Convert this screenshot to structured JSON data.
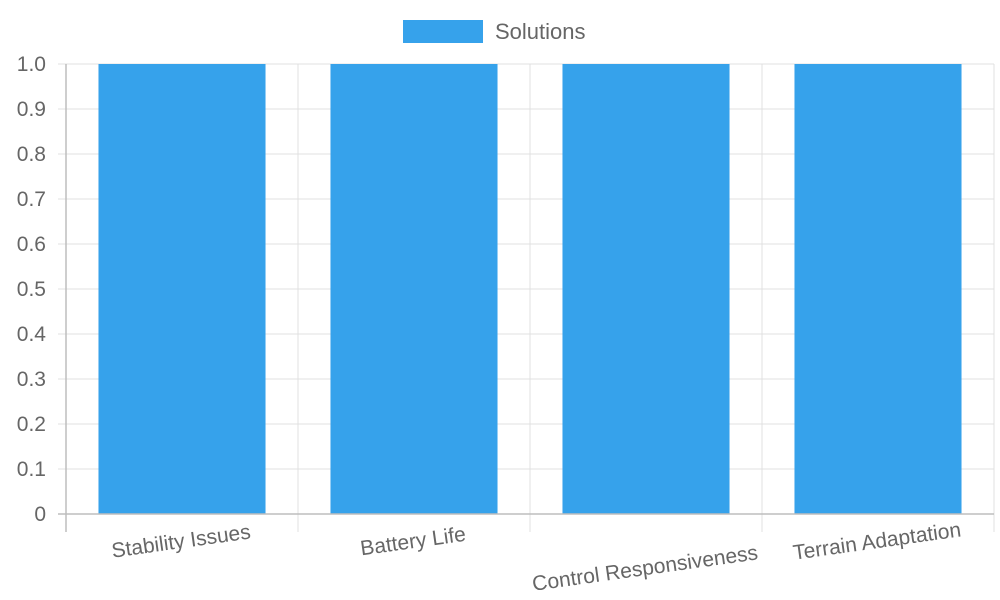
{
  "chart_data": {
    "type": "bar",
    "categories": [
      "Stability Issues",
      "Battery Life",
      "Control Responsiveness",
      "Terrain Adaptation"
    ],
    "series": [
      {
        "name": "Solutions",
        "values": [
          1,
          1,
          1,
          1
        ],
        "color": "#36A2EB"
      }
    ],
    "ylim": [
      0,
      1
    ],
    "yticks": [
      "0",
      "0.1",
      "0.2",
      "0.3",
      "0.4",
      "0.5",
      "0.6",
      "0.7",
      "0.8",
      "0.9",
      "1.0"
    ],
    "grid": true,
    "legend_position": "top-center",
    "xlabel_rotation": "tilted"
  }
}
